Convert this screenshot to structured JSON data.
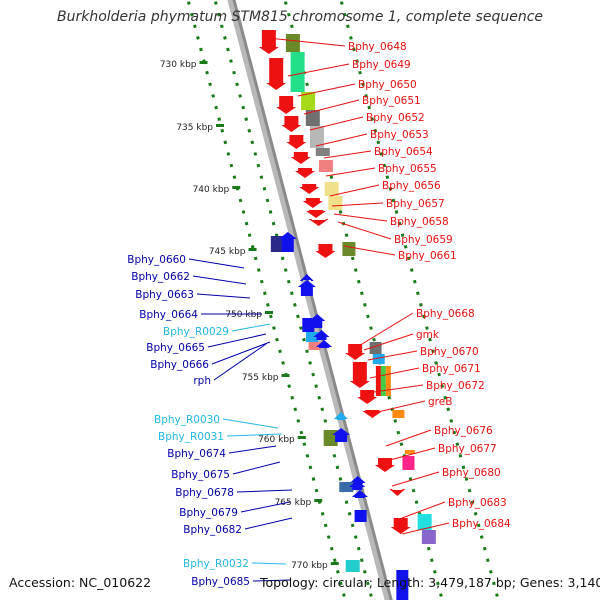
{
  "title": "Burkholderia phymatum STM815 chromosome 1, complete sequence",
  "footer": {
    "accession": "Accession: NC_010622",
    "info": "Topology: circular; Length: 3,479,187 bp; Genes: 3,140"
  },
  "colors": {
    "right_label": "#e81010",
    "left_label": "#0000a8",
    "rna_label": "#22b8e0",
    "tick_dots": "#1a7a1a",
    "backbone": "#8a8a8a"
  },
  "ticks": [
    "730 kbp",
    "735 kbp",
    "740 kbp",
    "745 kbp",
    "750 kbp",
    "755 kbp",
    "760 kbp",
    "765 kbp",
    "770 kbp"
  ],
  "right_labels": [
    "Bphy_0648",
    "Bphy_0649",
    "Bphy_0650",
    "Bphy_0651",
    "Bphy_0652",
    "Bphy_0653",
    "Bphy_0654",
    "Bphy_0655",
    "Bphy_0656",
    "Bphy_0657",
    "Bphy_0658",
    "Bphy_0659",
    "Bphy_0661",
    "Bphy_0668",
    "gmk",
    "Bphy_0670",
    "Bphy_0671",
    "Bphy_0672",
    "greB",
    "Bphy_0676",
    "Bphy_0677",
    "Bphy_0680",
    "Bphy_0683",
    "Bphy_0684"
  ],
  "left_labels": [
    "Bphy_0660",
    "Bphy_0662",
    "Bphy_0663",
    "Bphy_0664",
    "Bphy_R0029",
    "Bphy_0665",
    "Bphy_0666",
    "rph",
    "Bphy_R0030",
    "Bphy_R0031",
    "Bphy_0674",
    "Bphy_0675",
    "Bphy_0678",
    "Bphy_0679",
    "Bphy_0682",
    "Bphy_R0032",
    "Bphy_0685"
  ]
}
